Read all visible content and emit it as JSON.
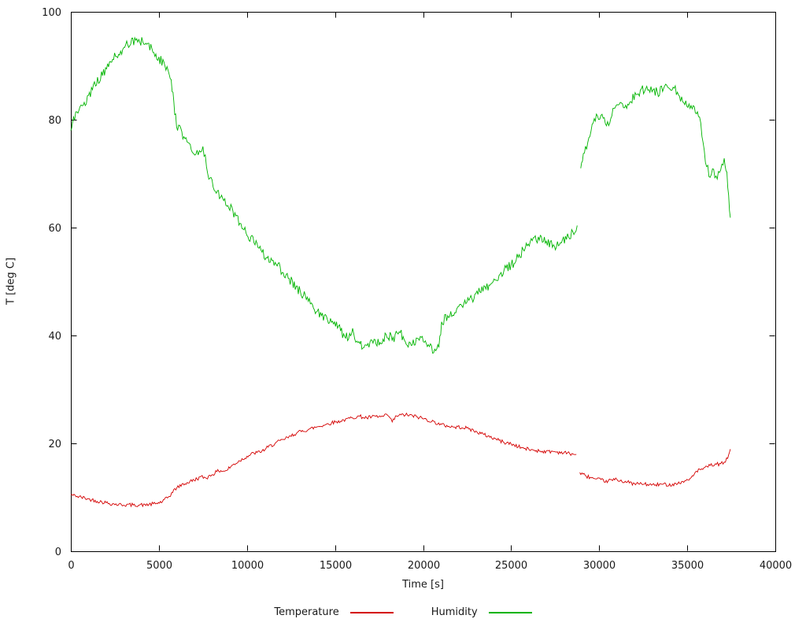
{
  "page": {
    "background": "#ffffff"
  },
  "chart_data": {
    "type": "line",
    "title": "",
    "xlabel": "Time [s]",
    "ylabel": "T [deg C]",
    "xlim": [
      0,
      40000
    ],
    "ylim": [
      0,
      100
    ],
    "x_ticks": [
      0,
      5000,
      10000,
      15000,
      20000,
      25000,
      30000,
      35000,
      40000
    ],
    "y_ticks": [
      0,
      20,
      40,
      60,
      80,
      100
    ],
    "grid": false,
    "legend_position": "bottom-center",
    "axis_color": "#000000",
    "series": [
      {
        "name": "Temperature",
        "color": "#d40000",
        "points": [
          [
            0,
            10.5
          ],
          [
            300,
            10.2
          ],
          [
            600,
            10.0
          ],
          [
            1000,
            9.7
          ],
          [
            1500,
            9.3
          ],
          [
            2000,
            9.0
          ],
          [
            2500,
            8.7
          ],
          [
            3000,
            8.6
          ],
          [
            3600,
            8.6
          ],
          [
            4200,
            8.6
          ],
          [
            4800,
            8.8
          ],
          [
            5200,
            9.2
          ],
          [
            5600,
            10.2
          ],
          [
            5900,
            11.5
          ],
          [
            6200,
            12.2
          ],
          [
            6600,
            12.7
          ],
          [
            7000,
            13.2
          ],
          [
            7400,
            13.8
          ],
          [
            7700,
            13.6
          ],
          [
            8000,
            14.2
          ],
          [
            8400,
            14.9
          ],
          [
            8800,
            14.9
          ],
          [
            9200,
            16.0
          ],
          [
            9600,
            16.8
          ],
          [
            10000,
            17.6
          ],
          [
            10400,
            18.2
          ],
          [
            10800,
            18.4
          ],
          [
            11200,
            19.3
          ],
          [
            11600,
            20.0
          ],
          [
            12000,
            20.6
          ],
          [
            12400,
            21.2
          ],
          [
            12800,
            21.9
          ],
          [
            13200,
            22.3
          ],
          [
            13600,
            22.7
          ],
          [
            14000,
            23.1
          ],
          [
            14400,
            23.4
          ],
          [
            14800,
            23.8
          ],
          [
            15200,
            24.1
          ],
          [
            15600,
            24.4
          ],
          [
            16000,
            24.8
          ],
          [
            16400,
            25.0
          ],
          [
            16800,
            24.7
          ],
          [
            17200,
            25.0
          ],
          [
            17600,
            24.9
          ],
          [
            18000,
            25.2
          ],
          [
            18250,
            24.0
          ],
          [
            18500,
            25.1
          ],
          [
            19000,
            25.3
          ],
          [
            19400,
            25.1
          ],
          [
            19800,
            24.8
          ],
          [
            20200,
            24.4
          ],
          [
            20600,
            24.0
          ],
          [
            21000,
            23.5
          ],
          [
            21400,
            23.2
          ],
          [
            21800,
            23.0
          ],
          [
            22200,
            23.0
          ],
          [
            22600,
            22.7
          ],
          [
            23000,
            22.2
          ],
          [
            23400,
            21.7
          ],
          [
            23800,
            21.2
          ],
          [
            24200,
            20.7
          ],
          [
            24600,
            20.2
          ],
          [
            25000,
            19.9
          ],
          [
            25400,
            19.4
          ],
          [
            25800,
            19.0
          ],
          [
            26200,
            18.8
          ],
          [
            26600,
            18.6
          ],
          [
            27000,
            18.5
          ],
          [
            27400,
            18.5
          ],
          [
            27800,
            18.3
          ],
          [
            28200,
            18.2
          ],
          [
            28700,
            17.9
          ],
          null,
          [
            28900,
            14.6
          ],
          [
            29200,
            14.0
          ],
          [
            29500,
            13.7
          ],
          [
            29800,
            13.3
          ],
          [
            30100,
            13.2
          ],
          [
            30400,
            13.0
          ],
          [
            30700,
            13.2
          ],
          [
            31000,
            13.3
          ],
          [
            31300,
            13.0
          ],
          [
            31600,
            12.8
          ],
          [
            32000,
            12.5
          ],
          [
            32400,
            12.5
          ],
          [
            32800,
            12.3
          ],
          [
            33200,
            12.3
          ],
          [
            33600,
            12.4
          ],
          [
            34000,
            12.4
          ],
          [
            34400,
            12.5
          ],
          [
            34800,
            12.9
          ],
          [
            35100,
            13.2
          ],
          [
            35400,
            14.4
          ],
          [
            35700,
            15.1
          ],
          [
            36000,
            15.4
          ],
          [
            36300,
            15.9
          ],
          [
            36600,
            16.1
          ],
          [
            36900,
            16.2
          ],
          [
            37100,
            16.4
          ],
          [
            37300,
            17.3
          ],
          [
            37450,
            19.0
          ]
        ]
      },
      {
        "name": "Humidity",
        "color": "#00b400",
        "points": [
          [
            0,
            78
          ],
          [
            150,
            80.5
          ],
          [
            400,
            81
          ],
          [
            700,
            82.5
          ],
          [
            1000,
            84.5
          ],
          [
            1400,
            86.5
          ],
          [
            1800,
            88.5
          ],
          [
            2200,
            90.5
          ],
          [
            2600,
            92
          ],
          [
            3000,
            93.3
          ],
          [
            3400,
            94.2
          ],
          [
            3800,
            94.6
          ],
          [
            4200,
            94.3
          ],
          [
            4600,
            93
          ],
          [
            5000,
            91.5
          ],
          [
            5400,
            89.5
          ],
          [
            5700,
            87.5
          ],
          [
            5850,
            83
          ],
          [
            6000,
            79
          ],
          [
            6300,
            77.5
          ],
          [
            6600,
            76
          ],
          [
            6900,
            74
          ],
          [
            7100,
            73.5
          ],
          [
            7300,
            74.5
          ],
          [
            7500,
            75
          ],
          [
            7700,
            71.5
          ],
          [
            7900,
            69
          ],
          [
            8200,
            67
          ],
          [
            8500,
            65.5
          ],
          [
            8800,
            64.5
          ],
          [
            9200,
            63
          ],
          [
            9600,
            61
          ],
          [
            10000,
            58.5
          ],
          [
            10400,
            57.5
          ],
          [
            10800,
            55.5
          ],
          [
            11200,
            54.5
          ],
          [
            11600,
            53.5
          ],
          [
            12000,
            52
          ],
          [
            12400,
            50.5
          ],
          [
            12800,
            49
          ],
          [
            13200,
            47.5
          ],
          [
            13600,
            46
          ],
          [
            14000,
            44.5
          ],
          [
            14400,
            43.5
          ],
          [
            14800,
            42.5
          ],
          [
            15200,
            41.5
          ],
          [
            15600,
            39.5
          ],
          [
            16000,
            41
          ],
          [
            16300,
            38.5
          ],
          [
            16700,
            38
          ],
          [
            17100,
            39
          ],
          [
            17500,
            38.5
          ],
          [
            17900,
            40
          ],
          [
            18300,
            39.5
          ],
          [
            18700,
            40.5
          ],
          [
            19100,
            38.5
          ],
          [
            19500,
            38.5
          ],
          [
            19900,
            39.5
          ],
          [
            20300,
            38.5
          ],
          [
            20600,
            37
          ],
          [
            20900,
            38
          ],
          [
            21050,
            42.5
          ],
          [
            21400,
            43.5
          ],
          [
            21800,
            44.5
          ],
          [
            22200,
            45.5
          ],
          [
            22600,
            46.5
          ],
          [
            23000,
            47.5
          ],
          [
            23400,
            48.5
          ],
          [
            23800,
            49.5
          ],
          [
            24200,
            50.5
          ],
          [
            24600,
            52
          ],
          [
            25000,
            53
          ],
          [
            25400,
            54.5
          ],
          [
            25800,
            56.5
          ],
          [
            26200,
            57.5
          ],
          [
            26600,
            58
          ],
          [
            27000,
            57.5
          ],
          [
            27400,
            56.5
          ],
          [
            27800,
            57
          ],
          [
            28200,
            58.5
          ],
          [
            28500,
            59
          ],
          [
            28750,
            60.5
          ],
          null,
          [
            28950,
            71
          ],
          [
            29100,
            73.5
          ],
          [
            29350,
            76
          ],
          [
            29600,
            79
          ],
          [
            29900,
            81
          ],
          [
            30100,
            80.5
          ],
          [
            30350,
            79.5
          ],
          [
            30600,
            79.5
          ],
          [
            30900,
            82.5
          ],
          [
            31200,
            83
          ],
          [
            31500,
            82.5
          ],
          [
            31800,
            83.5
          ],
          [
            32100,
            84.5
          ],
          [
            32400,
            85.5
          ],
          [
            32700,
            86
          ],
          [
            33000,
            85.5
          ],
          [
            33300,
            85
          ],
          [
            33600,
            85.5
          ],
          [
            33900,
            86
          ],
          [
            34200,
            86
          ],
          [
            34500,
            84.5
          ],
          [
            34800,
            83.5
          ],
          [
            35100,
            83
          ],
          [
            35400,
            82.5
          ],
          [
            35700,
            80.5
          ],
          [
            35900,
            75.5
          ],
          [
            36100,
            71.5
          ],
          [
            36300,
            69.5
          ],
          [
            36500,
            70.5
          ],
          [
            36700,
            69
          ],
          [
            36900,
            71
          ],
          [
            37100,
            72.5
          ],
          [
            37250,
            70
          ],
          [
            37350,
            66
          ],
          [
            37450,
            62
          ]
        ]
      }
    ]
  }
}
